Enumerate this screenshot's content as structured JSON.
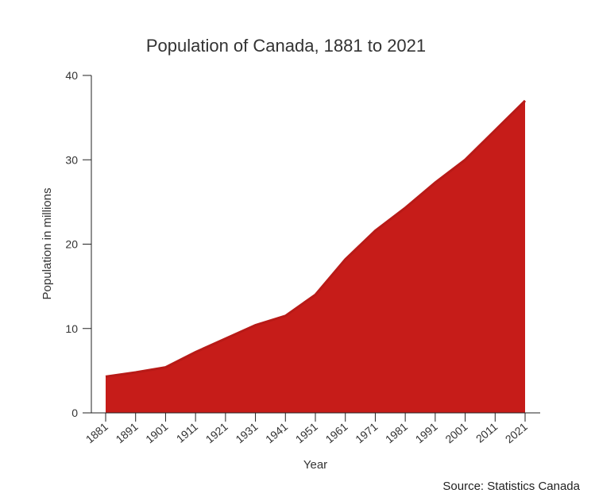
{
  "chart_data": {
    "type": "area",
    "title": "Population of Canada, 1881 to 2021",
    "xlabel": "Year",
    "ylabel": "Population in millions",
    "x": [
      1881,
      1891,
      1901,
      1911,
      1921,
      1931,
      1941,
      1951,
      1961,
      1971,
      1981,
      1991,
      2001,
      2011,
      2021
    ],
    "x_tick_labels": [
      "1881",
      "1891",
      "1901",
      "1911",
      "1921",
      "1931",
      "1941",
      "1951",
      "1961",
      "1971",
      "1981",
      "1991",
      "2001",
      "2011",
      "2021"
    ],
    "y_ticks": [
      0,
      10,
      20,
      30,
      40
    ],
    "y_tick_labels": [
      "0",
      "10",
      "20",
      "30",
      "40"
    ],
    "ylim": [
      0,
      40
    ],
    "series": [
      {
        "values": [
          4.3,
          4.8,
          5.4,
          7.2,
          8.8,
          10.4,
          11.5,
          14.0,
          18.2,
          21.6,
          24.3,
          27.3,
          30.0,
          33.5,
          37.0
        ]
      }
    ],
    "grid": false,
    "legend": "none",
    "fill_color": "#c61c19",
    "line_color": "#b81a17",
    "source": "Source: Statistics Canada"
  }
}
